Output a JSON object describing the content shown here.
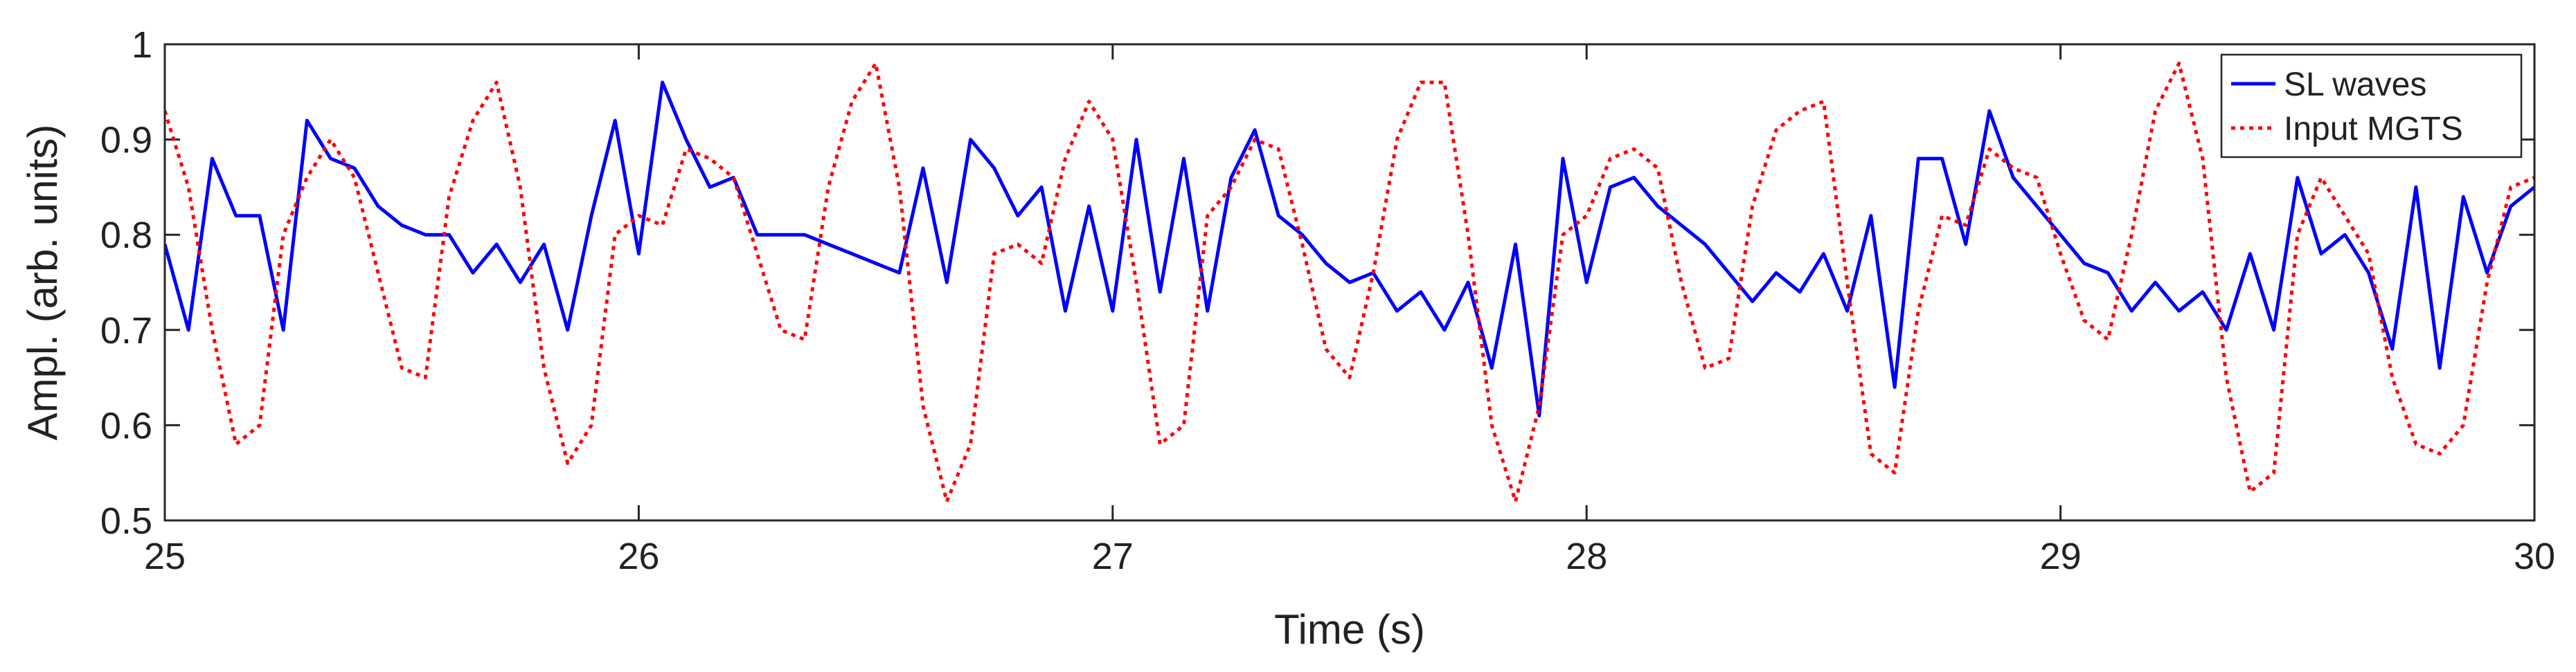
{
  "chart_data": {
    "type": "line",
    "xlabel": "Time (s)",
    "ylabel": "Ampl. (arb. units)",
    "x": [
      25.0,
      25.05,
      25.1,
      25.15,
      25.2,
      25.25,
      25.3,
      25.35,
      25.4,
      25.45,
      25.5,
      25.55,
      25.6,
      25.65,
      25.7,
      25.75,
      25.8,
      25.85,
      25.9,
      25.95,
      26.0,
      26.05,
      26.1,
      26.15,
      26.2,
      26.25,
      26.3,
      26.35,
      26.4,
      26.45,
      26.5,
      26.55,
      26.6,
      26.65,
      26.7,
      26.75,
      26.8,
      26.85,
      26.9,
      26.95,
      27.0,
      27.05,
      27.1,
      27.15,
      27.2,
      27.25,
      27.3,
      27.35,
      27.4,
      27.45,
      27.5,
      27.55,
      27.6,
      27.65,
      27.7,
      27.75,
      27.8,
      27.85,
      27.9,
      27.95,
      28.0,
      28.05,
      28.1,
      28.15,
      28.2,
      28.25,
      28.3,
      28.35,
      28.4,
      28.45,
      28.5,
      28.55,
      28.6,
      28.65,
      28.7,
      28.75,
      28.8,
      28.85,
      28.9,
      28.95,
      29.0,
      29.05,
      29.1,
      29.15,
      29.2,
      29.25,
      29.3,
      29.35,
      29.4,
      29.45,
      29.5,
      29.55,
      29.6,
      29.65,
      29.7,
      29.75,
      29.8,
      29.85,
      29.9,
      29.95,
      30.0
    ],
    "series": [
      {
        "name": "SL waves",
        "color": "#0000ff",
        "style": "solid",
        "values": [
          0.79,
          0.7,
          0.88,
          0.82,
          0.82,
          0.7,
          0.92,
          0.88,
          0.87,
          0.83,
          0.81,
          0.8,
          0.8,
          0.76,
          0.79,
          0.75,
          0.79,
          0.7,
          0.82,
          0.92,
          0.78,
          0.96,
          0.9,
          0.85,
          0.86,
          0.8,
          0.8,
          0.8,
          0.79,
          0.78,
          0.77,
          0.76,
          0.87,
          0.75,
          0.9,
          0.87,
          0.82,
          0.85,
          0.72,
          0.83,
          0.72,
          0.9,
          0.74,
          0.88,
          0.72,
          0.86,
          0.91,
          0.82,
          0.8,
          0.77,
          0.75,
          0.76,
          0.72,
          0.74,
          0.7,
          0.75,
          0.66,
          0.79,
          0.61,
          0.88,
          0.75,
          0.85,
          0.86,
          0.83,
          0.81,
          0.79,
          0.76,
          0.73,
          0.76,
          0.74,
          0.78,
          0.72,
          0.82,
          0.64,
          0.88,
          0.88,
          0.79,
          0.93,
          0.86,
          0.83,
          0.8,
          0.77,
          0.76,
          0.72,
          0.75,
          0.72,
          0.74,
          0.7,
          0.78,
          0.7,
          0.86,
          0.78,
          0.8,
          0.76,
          0.68,
          0.85,
          0.66,
          0.84,
          0.76,
          0.83,
          0.85
        ]
      },
      {
        "name": "Input MGTS",
        "color": "#ff0000",
        "style": "dotted",
        "values": [
          0.93,
          0.85,
          0.7,
          0.58,
          0.6,
          0.8,
          0.86,
          0.9,
          0.86,
          0.76,
          0.66,
          0.65,
          0.84,
          0.92,
          0.96,
          0.85,
          0.66,
          0.56,
          0.6,
          0.8,
          0.82,
          0.81,
          0.89,
          0.88,
          0.86,
          0.78,
          0.7,
          0.69,
          0.85,
          0.94,
          0.98,
          0.85,
          0.62,
          0.52,
          0.58,
          0.78,
          0.79,
          0.77,
          0.88,
          0.94,
          0.9,
          0.75,
          0.58,
          0.6,
          0.82,
          0.85,
          0.9,
          0.89,
          0.79,
          0.68,
          0.65,
          0.76,
          0.9,
          0.96,
          0.96,
          0.8,
          0.6,
          0.52,
          0.62,
          0.8,
          0.82,
          0.88,
          0.89,
          0.87,
          0.75,
          0.66,
          0.67,
          0.83,
          0.91,
          0.93,
          0.94,
          0.75,
          0.57,
          0.55,
          0.72,
          0.82,
          0.81,
          0.89,
          0.87,
          0.86,
          0.78,
          0.71,
          0.69,
          0.8,
          0.93,
          0.98,
          0.88,
          0.65,
          0.53,
          0.55,
          0.8,
          0.86,
          0.82,
          0.78,
          0.65,
          0.58,
          0.57,
          0.6,
          0.75,
          0.85,
          0.86
        ]
      }
    ],
    "xlim": [
      25,
      30
    ],
    "xticks": [
      25,
      26,
      27,
      28,
      29,
      30
    ],
    "ylim": [
      0.5,
      1
    ],
    "yticks": [
      0.5,
      0.6,
      0.7,
      0.8,
      0.9,
      1
    ],
    "legend": "upper right",
    "grid": false
  }
}
